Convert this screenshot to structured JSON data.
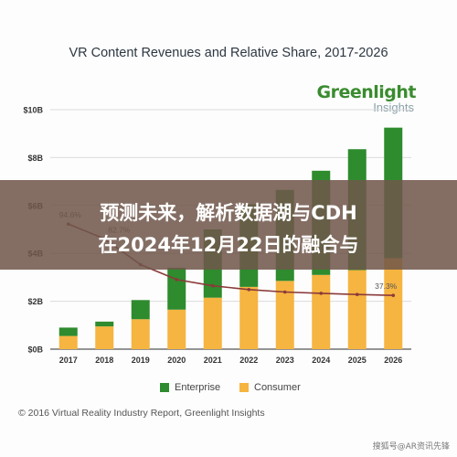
{
  "banner": {
    "line1": "预测未来，解析数据湖与CDH",
    "line2": "在2024年12月22日的融合与"
  },
  "logo": {
    "main": "Greenlight",
    "sub": "Insights"
  },
  "watermark": "搜狐号@AR资讯先锋",
  "colors": {
    "enterprise": "#2e8b2e",
    "consumer": "#f6b440",
    "share_line": "#8b3a3a",
    "banner": "#70564b"
  },
  "chart_data": {
    "type": "bar",
    "stacked": true,
    "title": "VR Content Revenues and Relative Share, 2017-2026",
    "source": "© 2016 Virtual Reality Industry Report, Greenlight Insights",
    "xlabel": "",
    "ylabel": "",
    "categories": [
      "2017",
      "2018",
      "2019",
      "2020",
      "2021",
      "2022",
      "2023",
      "2024",
      "2025",
      "2026"
    ],
    "ylim": [
      0,
      10
    ],
    "yticks": [
      "$0B",
      "$2B",
      "$4B",
      "$6B",
      "$8B",
      "$10B"
    ],
    "series": [
      {
        "name": "Consumer",
        "values": [
          0.55,
          0.95,
          1.25,
          1.65,
          2.15,
          2.6,
          2.85,
          3.1,
          3.3,
          3.8
        ]
      },
      {
        "name": "Enterprise",
        "values": [
          0.35,
          0.2,
          0.8,
          1.75,
          2.85,
          3.45,
          3.8,
          4.35,
          5.05,
          5.45
        ]
      }
    ],
    "share_line": {
      "name": "",
      "values": [
        94.6,
        82.7,
        62,
        50,
        45,
        42,
        40,
        39,
        38,
        37.3
      ],
      "labels": [
        "94.6%",
        "82.7%",
        "",
        "",
        "",
        "",
        "",
        "",
        "",
        "37.3%"
      ]
    },
    "legend": {
      "position": "bottom",
      "items": [
        "Enterprise",
        "Consumer"
      ]
    },
    "grid": true
  }
}
